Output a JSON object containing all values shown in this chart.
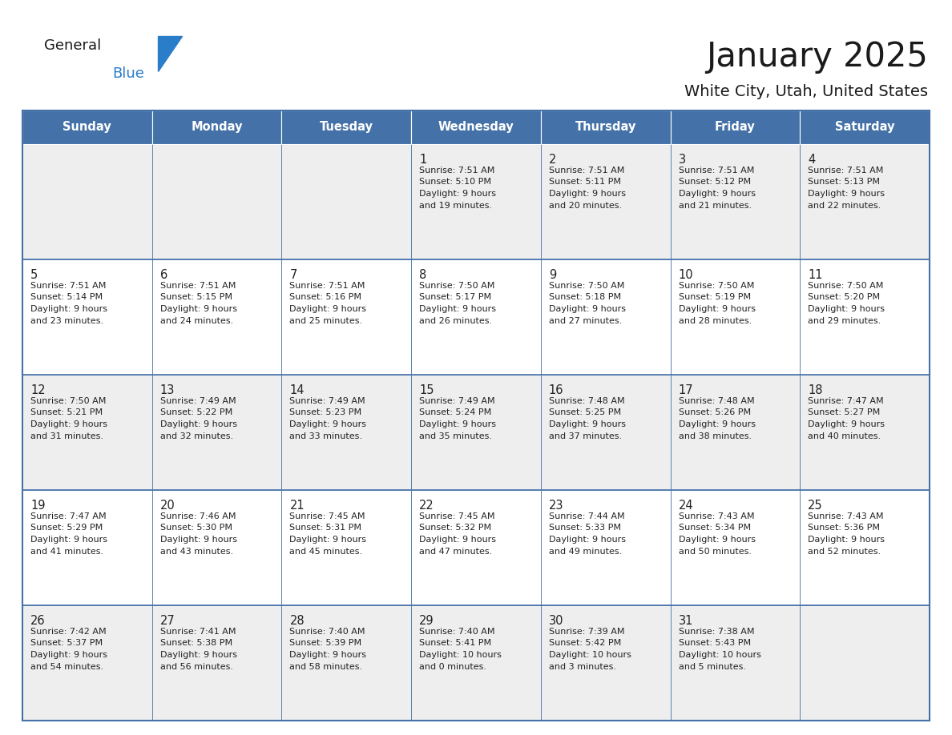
{
  "title": "January 2025",
  "subtitle": "White City, Utah, United States",
  "header_color": "#4472a8",
  "header_text_color": "#ffffff",
  "row_bg_odd": "#eeeeee",
  "row_bg_even": "#ffffff",
  "border_color": "#4472a8",
  "text_color": "#222222",
  "days_of_week": [
    "Sunday",
    "Monday",
    "Tuesday",
    "Wednesday",
    "Thursday",
    "Friday",
    "Saturday"
  ],
  "calendar_data": [
    [
      {
        "day": "",
        "sunrise": "",
        "sunset": "",
        "daylight": ""
      },
      {
        "day": "",
        "sunrise": "",
        "sunset": "",
        "daylight": ""
      },
      {
        "day": "",
        "sunrise": "",
        "sunset": "",
        "daylight": ""
      },
      {
        "day": "1",
        "sunrise": "7:51 AM",
        "sunset": "5:10 PM",
        "daylight": "9 hours and 19 minutes."
      },
      {
        "day": "2",
        "sunrise": "7:51 AM",
        "sunset": "5:11 PM",
        "daylight": "9 hours and 20 minutes."
      },
      {
        "day": "3",
        "sunrise": "7:51 AM",
        "sunset": "5:12 PM",
        "daylight": "9 hours and 21 minutes."
      },
      {
        "day": "4",
        "sunrise": "7:51 AM",
        "sunset": "5:13 PM",
        "daylight": "9 hours and 22 minutes."
      }
    ],
    [
      {
        "day": "5",
        "sunrise": "7:51 AM",
        "sunset": "5:14 PM",
        "daylight": "9 hours and 23 minutes."
      },
      {
        "day": "6",
        "sunrise": "7:51 AM",
        "sunset": "5:15 PM",
        "daylight": "9 hours and 24 minutes."
      },
      {
        "day": "7",
        "sunrise": "7:51 AM",
        "sunset": "5:16 PM",
        "daylight": "9 hours and 25 minutes."
      },
      {
        "day": "8",
        "sunrise": "7:50 AM",
        "sunset": "5:17 PM",
        "daylight": "9 hours and 26 minutes."
      },
      {
        "day": "9",
        "sunrise": "7:50 AM",
        "sunset": "5:18 PM",
        "daylight": "9 hours and 27 minutes."
      },
      {
        "day": "10",
        "sunrise": "7:50 AM",
        "sunset": "5:19 PM",
        "daylight": "9 hours and 28 minutes."
      },
      {
        "day": "11",
        "sunrise": "7:50 AM",
        "sunset": "5:20 PM",
        "daylight": "9 hours and 29 minutes."
      }
    ],
    [
      {
        "day": "12",
        "sunrise": "7:50 AM",
        "sunset": "5:21 PM",
        "daylight": "9 hours and 31 minutes."
      },
      {
        "day": "13",
        "sunrise": "7:49 AM",
        "sunset": "5:22 PM",
        "daylight": "9 hours and 32 minutes."
      },
      {
        "day": "14",
        "sunrise": "7:49 AM",
        "sunset": "5:23 PM",
        "daylight": "9 hours and 33 minutes."
      },
      {
        "day": "15",
        "sunrise": "7:49 AM",
        "sunset": "5:24 PM",
        "daylight": "9 hours and 35 minutes."
      },
      {
        "day": "16",
        "sunrise": "7:48 AM",
        "sunset": "5:25 PM",
        "daylight": "9 hours and 37 minutes."
      },
      {
        "day": "17",
        "sunrise": "7:48 AM",
        "sunset": "5:26 PM",
        "daylight": "9 hours and 38 minutes."
      },
      {
        "day": "18",
        "sunrise": "7:47 AM",
        "sunset": "5:27 PM",
        "daylight": "9 hours and 40 minutes."
      }
    ],
    [
      {
        "day": "19",
        "sunrise": "7:47 AM",
        "sunset": "5:29 PM",
        "daylight": "9 hours and 41 minutes."
      },
      {
        "day": "20",
        "sunrise": "7:46 AM",
        "sunset": "5:30 PM",
        "daylight": "9 hours and 43 minutes."
      },
      {
        "day": "21",
        "sunrise": "7:45 AM",
        "sunset": "5:31 PM",
        "daylight": "9 hours and 45 minutes."
      },
      {
        "day": "22",
        "sunrise": "7:45 AM",
        "sunset": "5:32 PM",
        "daylight": "9 hours and 47 minutes."
      },
      {
        "day": "23",
        "sunrise": "7:44 AM",
        "sunset": "5:33 PM",
        "daylight": "9 hours and 49 minutes."
      },
      {
        "day": "24",
        "sunrise": "7:43 AM",
        "sunset": "5:34 PM",
        "daylight": "9 hours and 50 minutes."
      },
      {
        "day": "25",
        "sunrise": "7:43 AM",
        "sunset": "5:36 PM",
        "daylight": "9 hours and 52 minutes."
      }
    ],
    [
      {
        "day": "26",
        "sunrise": "7:42 AM",
        "sunset": "5:37 PM",
        "daylight": "9 hours and 54 minutes."
      },
      {
        "day": "27",
        "sunrise": "7:41 AM",
        "sunset": "5:38 PM",
        "daylight": "9 hours and 56 minutes."
      },
      {
        "day": "28",
        "sunrise": "7:40 AM",
        "sunset": "5:39 PM",
        "daylight": "9 hours and 58 minutes."
      },
      {
        "day": "29",
        "sunrise": "7:40 AM",
        "sunset": "5:41 PM",
        "daylight": "10 hours and 0 minutes."
      },
      {
        "day": "30",
        "sunrise": "7:39 AM",
        "sunset": "5:42 PM",
        "daylight": "10 hours and 3 minutes."
      },
      {
        "day": "31",
        "sunrise": "7:38 AM",
        "sunset": "5:43 PM",
        "daylight": "10 hours and 5 minutes."
      },
      {
        "day": "",
        "sunrise": "",
        "sunset": "",
        "daylight": ""
      }
    ]
  ],
  "fig_width": 11.88,
  "fig_height": 9.18,
  "dpi": 100
}
